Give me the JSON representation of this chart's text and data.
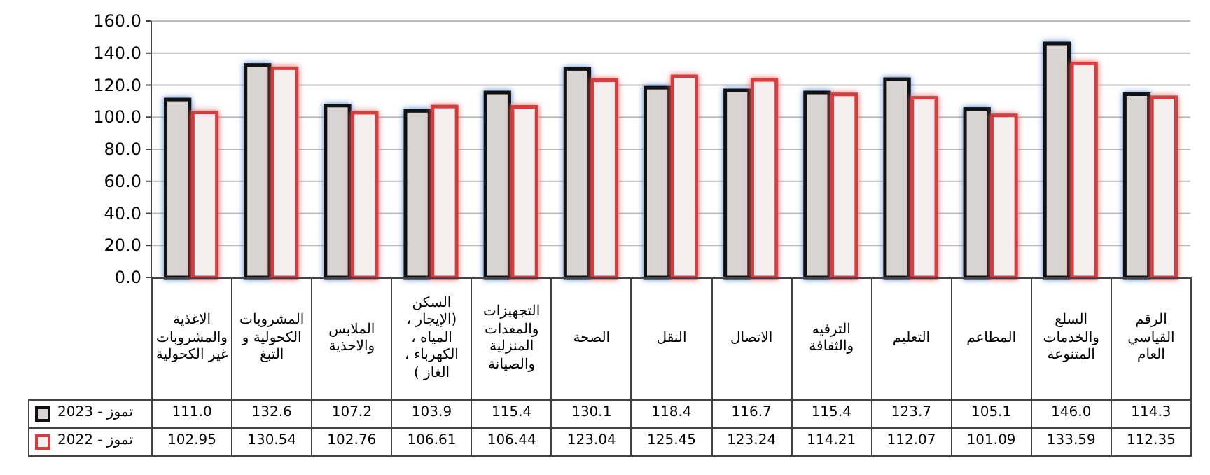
{
  "chart_data": {
    "type": "bar",
    "categories": [
      "الاغذية والمشروبات غير الكحولية",
      "المشروبات الكحولية و التبغ",
      "الملابس والاحذية",
      "السكن (الإيجار ، المياه ، الكهرباء ، الغاز )",
      "التجهيزات والمعدات المنزلية والصيانة",
      "الصحة",
      "النقل",
      "الاتصال",
      "الترفيه والثقافة",
      "التعليم",
      "المطاعم",
      "السلع والخدمات المتنوعة",
      "الرقم القياسي العام"
    ],
    "series": [
      {
        "name": "تموز - 2023",
        "color": "#111111",
        "values": [
          111.0,
          132.6,
          107.2,
          103.9,
          115.4,
          130.1,
          118.4,
          116.7,
          115.4,
          123.7,
          105.1,
          146.0,
          114.3
        ],
        "value_labels": [
          "111.0",
          "132.6",
          "107.2",
          "103.9",
          "115.4",
          "130.1",
          "118.4",
          "116.7",
          "115.4",
          "123.7",
          "105.1",
          "146.0",
          "114.3"
        ]
      },
      {
        "name": "تموز - 2022",
        "color": "#d04040",
        "values": [
          102.95,
          130.54,
          102.76,
          106.61,
          106.44,
          123.04,
          125.45,
          123.24,
          114.21,
          112.07,
          101.09,
          133.59,
          112.35
        ],
        "value_labels": [
          "102.95",
          "130.54",
          "102.76",
          "106.61",
          "106.44",
          "123.04",
          "125.45",
          "123.24",
          "114.21",
          "112.07",
          "101.09",
          "133.59",
          "112.35"
        ]
      }
    ],
    "ylim": [
      0,
      160
    ],
    "yticks": [
      {
        "value": 0,
        "label": "0.0"
      },
      {
        "value": 20,
        "label": "20.0"
      },
      {
        "value": 40,
        "label": "40.0"
      },
      {
        "value": 60,
        "label": "60.0"
      },
      {
        "value": 80,
        "label": "80.0"
      },
      {
        "value": 100,
        "label": "100.0"
      },
      {
        "value": 120,
        "label": "120.0"
      },
      {
        "value": 140,
        "label": "140.0"
      },
      {
        "value": 160,
        "label": "160.0"
      }
    ],
    "grid": "y",
    "legend": "bottom"
  }
}
